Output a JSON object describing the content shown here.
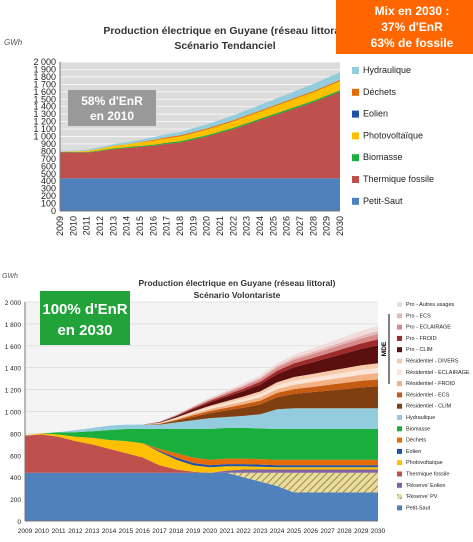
{
  "colors": {
    "petit_saut": "#4f81bd",
    "thermique": "#c0504d",
    "biomasse": "#1aae3c",
    "photovoltaique": "#ffc000",
    "eolien": "#2050a8",
    "dechets": "#e46c0a",
    "hydraulique": "#93cddd",
    "reserve_pv": "#c8b46a",
    "reserve_eolien": "#8064a2",
    "mde": "#7a1010",
    "plot_bg": "#dcdcdc",
    "orange_box": "#ff6600",
    "green_box": "#22a33a",
    "grey_box": "#9a9a9a"
  },
  "panel1": {
    "title_line1": "Production électrique en Guyane (réseau littoral)",
    "title_line2": "Scénario Tendanciel",
    "unit": "GWh",
    "callout": [
      "Mix en 2030 :",
      "37% d'EnR",
      "63% de fossile"
    ],
    "note": [
      "58% d'EnR",
      "en 2010"
    ]
  },
  "panel2": {
    "title_line1": "Production électrique en Guyane (réseau littoral)",
    "title_line2": "Scénario Volontariste",
    "unit": "GWh",
    "callout": [
      "100% d'EnR",
      "en 2030"
    ],
    "mde_label": "MDE"
  },
  "chart_data": [
    {
      "type": "area",
      "title": "Production électrique en Guyane (réseau littoral) — Scénario Tendanciel",
      "ylabel": "GWh",
      "ylim": [
        0,
        2000
      ],
      "yticks": [
        0,
        100,
        200,
        300,
        400,
        500,
        600,
        700,
        800,
        900,
        1000,
        1100,
        1200,
        1300,
        1400,
        1500,
        1600,
        1700,
        1800,
        1900,
        2000
      ],
      "ytick_labels": [
        "0",
        "100",
        "200",
        "300",
        "400",
        "500",
        "600",
        "700",
        "800",
        "900",
        "1 000",
        "1 100",
        "1 200",
        "1 300",
        "1 400",
        "1 500",
        "1 600",
        "1 700",
        "1 800",
        "1 900",
        "2 000"
      ],
      "x": [
        2009,
        2010,
        2011,
        2012,
        2013,
        2014,
        2015,
        2016,
        2017,
        2018,
        2019,
        2020,
        2021,
        2022,
        2023,
        2024,
        2025,
        2026,
        2027,
        2028,
        2029,
        2030
      ],
      "grid": true,
      "legend_position": "right",
      "series": [
        {
          "name": "Petit-Saut",
          "key": "petit_saut",
          "values": [
            440,
            440,
            440,
            440,
            440,
            440,
            440,
            440,
            440,
            440,
            440,
            440,
            440,
            440,
            440,
            440,
            440,
            440,
            440,
            440,
            440,
            440
          ]
        },
        {
          "name": "Thermique fossile",
          "key": "thermique",
          "values": [
            350,
            345,
            345,
            365,
            390,
            405,
            420,
            435,
            460,
            480,
            520,
            560,
            610,
            660,
            720,
            780,
            840,
            900,
            960,
            1020,
            1090,
            1160
          ]
        },
        {
          "name": "Biomasse",
          "key": "biomasse",
          "values": [
            5,
            5,
            5,
            8,
            10,
            12,
            14,
            15,
            15,
            16,
            16,
            17,
            17,
            18,
            18,
            18,
            19,
            19,
            20,
            20,
            20,
            20
          ]
        },
        {
          "name": "Photovoltaïque",
          "key": "photovoltaique",
          "values": [
            2,
            10,
            15,
            25,
            35,
            40,
            48,
            55,
            60,
            65,
            70,
            75,
            80,
            85,
            90,
            95,
            100,
            105,
            110,
            115,
            120,
            125
          ]
        },
        {
          "name": "Eolien",
          "key": "eolien",
          "values": [
            0,
            0,
            0,
            0,
            0,
            0,
            0,
            0,
            0,
            0,
            0,
            0,
            0,
            0,
            0,
            0,
            0,
            0,
            0,
            0,
            0,
            0
          ]
        },
        {
          "name": "Déchets",
          "key": "dechets",
          "values": [
            0,
            0,
            0,
            0,
            0,
            0,
            5,
            10,
            15,
            15,
            15,
            15,
            15,
            15,
            15,
            15,
            15,
            15,
            15,
            15,
            15,
            15
          ]
        },
        {
          "name": "Hydraulique",
          "key": "hydraulique",
          "values": [
            5,
            10,
            15,
            20,
            22,
            25,
            30,
            35,
            40,
            45,
            50,
            55,
            60,
            65,
            70,
            75,
            80,
            85,
            90,
            95,
            100,
            105
          ]
        }
      ],
      "legend_order": [
        "Hydraulique",
        "Déchets",
        "Eolien",
        "Photovoltaïque",
        "Biomasse",
        "Thermique fossile",
        "Petit-Saut"
      ]
    },
    {
      "type": "area",
      "title": "Production électrique en Guyane (réseau littoral) — Scénario Volontariste",
      "ylabel": "GWh",
      "ylim": [
        0,
        2000
      ],
      "yticks": [
        0,
        200,
        400,
        600,
        800,
        1000,
        1200,
        1400,
        1600,
        1800,
        2000
      ],
      "ytick_labels": [
        "0",
        "200",
        "400",
        "600",
        "800",
        "1 000",
        "1 200",
        "1 400",
        "1 600",
        "1 800",
        "2 000"
      ],
      "x": [
        2009,
        2010,
        2011,
        2012,
        2013,
        2014,
        2015,
        2016,
        2017,
        2018,
        2019,
        2020,
        2021,
        2022,
        2023,
        2024,
        2025,
        2026,
        2027,
        2028,
        2029,
        2030
      ],
      "grid": true,
      "legend_position": "right",
      "series": [
        {
          "name": "Petit-Saut",
          "key": "petit_saut",
          "values": [
            440,
            440,
            440,
            440,
            440,
            440,
            440,
            440,
            440,
            440,
            440,
            440,
            440,
            400,
            360,
            320,
            260,
            260,
            260,
            260,
            260,
            260
          ]
        },
        {
          "name": "'Réserve' PV",
          "key": "reserve_pv",
          "hatched": true,
          "values": [
            0,
            0,
            0,
            0,
            0,
            0,
            0,
            0,
            0,
            0,
            0,
            0,
            0,
            40,
            80,
            120,
            180,
            180,
            180,
            180,
            180,
            180
          ]
        },
        {
          "name": "'Réserve' Eolien",
          "key": "reserve_eolien",
          "values": [
            0,
            0,
            0,
            0,
            0,
            0,
            0,
            0,
            0,
            0,
            0,
            0,
            20,
            30,
            30,
            30,
            30,
            30,
            30,
            30,
            30,
            30
          ]
        },
        {
          "name": "Thermique fossile",
          "key": "thermique",
          "values": [
            340,
            350,
            330,
            290,
            260,
            220,
            180,
            140,
            70,
            30,
            10,
            0,
            0,
            0,
            0,
            0,
            0,
            0,
            0,
            0,
            0,
            0
          ]
        },
        {
          "name": "Photovoltaïque",
          "key": "photovoltaique",
          "values": [
            2,
            10,
            20,
            40,
            60,
            80,
            110,
            130,
            120,
            90,
            60,
            50,
            40,
            30,
            25,
            20,
            20,
            20,
            20,
            20,
            20,
            20
          ]
        },
        {
          "name": "Eolien",
          "key": "eolien",
          "values": [
            0,
            0,
            0,
            0,
            0,
            0,
            0,
            0,
            10,
            20,
            20,
            20,
            20,
            20,
            20,
            20,
            20,
            20,
            20,
            20,
            20,
            20
          ]
        },
        {
          "name": "Déchets",
          "key": "dechets",
          "values": [
            0,
            0,
            0,
            0,
            0,
            0,
            0,
            0,
            20,
            40,
            50,
            50,
            50,
            50,
            50,
            50,
            50,
            50,
            50,
            50,
            50,
            50
          ]
        },
        {
          "name": "Biomasse",
          "key": "biomasse",
          "values": [
            0,
            0,
            20,
            40,
            60,
            90,
            110,
            130,
            180,
            220,
            260,
            280,
            280,
            280,
            280,
            280,
            280,
            280,
            280,
            280,
            280,
            280
          ]
        },
        {
          "name": "Hydraulique",
          "key": "hydraulique",
          "values": [
            0,
            0,
            0,
            20,
            30,
            40,
            40,
            40,
            40,
            60,
            80,
            100,
            100,
            110,
            130,
            180,
            190,
            190,
            190,
            190,
            190,
            190
          ]
        },
        {
          "name": "Résidentiel - CLIM",
          "key": "r_clim",
          "color": "#7f3f10",
          "values": [
            0,
            0,
            0,
            0,
            0,
            0,
            0,
            0,
            5,
            15,
            30,
            45,
            60,
            75,
            90,
            110,
            130,
            145,
            160,
            175,
            190,
            200
          ]
        },
        {
          "name": "Résidentiel - ECS",
          "key": "r_ecs",
          "color": "#c55a11",
          "values": [
            0,
            0,
            0,
            0,
            0,
            0,
            0,
            0,
            3,
            8,
            15,
            20,
            25,
            30,
            35,
            40,
            45,
            48,
            52,
            56,
            60,
            62
          ]
        },
        {
          "name": "Résidentiel - FROID",
          "key": "r_froid",
          "color": "#f4b183",
          "values": [
            0,
            0,
            0,
            0,
            0,
            0,
            0,
            0,
            3,
            8,
            14,
            18,
            22,
            26,
            30,
            35,
            40,
            44,
            48,
            52,
            56,
            60
          ]
        },
        {
          "name": "Résidentiel - ECLAIRAGE",
          "key": "r_ecl",
          "color": "#fbe5d6",
          "values": [
            0,
            0,
            0,
            0,
            0,
            0,
            0,
            0,
            3,
            8,
            12,
            16,
            20,
            24,
            28,
            32,
            36,
            38,
            40,
            42,
            44,
            45
          ]
        },
        {
          "name": "Résidentiel - DIVERS",
          "key": "r_div",
          "color": "#f8cbad",
          "values": [
            0,
            0,
            0,
            0,
            0,
            0,
            0,
            0,
            3,
            6,
            10,
            14,
            18,
            22,
            26,
            30,
            34,
            36,
            38,
            40,
            42,
            44
          ]
        },
        {
          "name": "Pro - CLIM",
          "key": "p_clim",
          "color": "#5b0f0f",
          "values": [
            0,
            0,
            0,
            0,
            0,
            0,
            0,
            0,
            5,
            12,
            20,
            30,
            40,
            50,
            62,
            75,
            90,
            105,
            120,
            135,
            150,
            165
          ]
        },
        {
          "name": "Pro - FROID",
          "key": "p_froid",
          "color": "#9e2a2a",
          "values": [
            0,
            0,
            0,
            0,
            0,
            0,
            0,
            0,
            2,
            5,
            10,
            14,
            18,
            22,
            26,
            30,
            35,
            38,
            42,
            46,
            50,
            54
          ]
        },
        {
          "name": "Pro - ECLAIRAGE",
          "key": "p_ecl",
          "color": "#d88a8a",
          "values": [
            0,
            0,
            0,
            0,
            0,
            0,
            0,
            0,
            2,
            5,
            9,
            13,
            17,
            21,
            25,
            29,
            33,
            36,
            39,
            42,
            45,
            48
          ]
        },
        {
          "name": "Pro - ECS",
          "key": "p_ecs",
          "color": "#e6b8b7",
          "values": [
            0,
            0,
            0,
            0,
            0,
            0,
            0,
            0,
            1,
            3,
            5,
            7,
            9,
            11,
            13,
            15,
            17,
            19,
            21,
            23,
            25,
            27
          ]
        },
        {
          "name": "Pro - Autres usages",
          "key": "p_autres",
          "color": "#f2dcdb",
          "values": [
            0,
            0,
            0,
            0,
            0,
            0,
            0,
            0,
            2,
            5,
            8,
            11,
            14,
            17,
            20,
            24,
            28,
            32,
            36,
            40,
            44,
            48
          ]
        }
      ],
      "legend_order": [
        "Pro - Autres usages",
        "Pro - ECS",
        "Pro - ECLAIRAGE",
        "Pro - FROID",
        "Pro - CLIM",
        "Résidentiel - DIVERS",
        "Résidentiel - ECLAIRAGE",
        "Résidentiel - FROID",
        "Résidentiel - ECS",
        "Résidentiel - CLIM",
        "Hydraulique",
        "Biomasse",
        "Déchets",
        "Eolien",
        "Photovoltaïque",
        "Thermique fossile",
        "'Réserve' Eolien",
        "'Réserve' PV",
        "Petit-Saut"
      ]
    }
  ]
}
